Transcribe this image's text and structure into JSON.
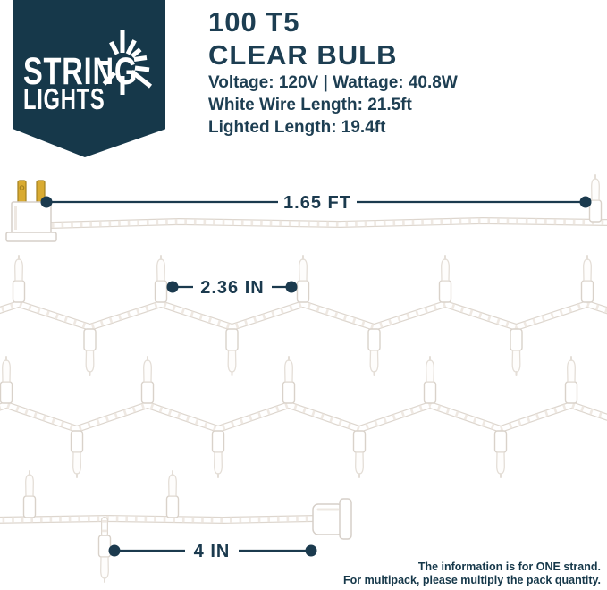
{
  "brand": {
    "name_line1": "STRING",
    "name_line2": "LIGHTS",
    "icon": "light-burst"
  },
  "header": {
    "title_line1": "100 T5",
    "title_line2": "CLEAR BULB",
    "specs": [
      "Voltage: 120V | Wattage: 40.8W",
      "White Wire Length: 21.5ft",
      "Lighted Length: 19.4ft"
    ]
  },
  "diagram": {
    "lead_length_label": "1.65 FT",
    "bulb_spacing_label": "2.36 IN",
    "tail_length_label": "4 IN"
  },
  "footnote": {
    "line1": "The information is for ONE strand.",
    "line2": "For multipack, please multiply the pack quantity."
  },
  "colors": {
    "banner_navy": "#16384A",
    "text_navy": "#1D3E52",
    "measure_navy": "#1B3A4E",
    "plug_brass": "#D9AB32",
    "wire_shadow": "#DDD6CE"
  }
}
